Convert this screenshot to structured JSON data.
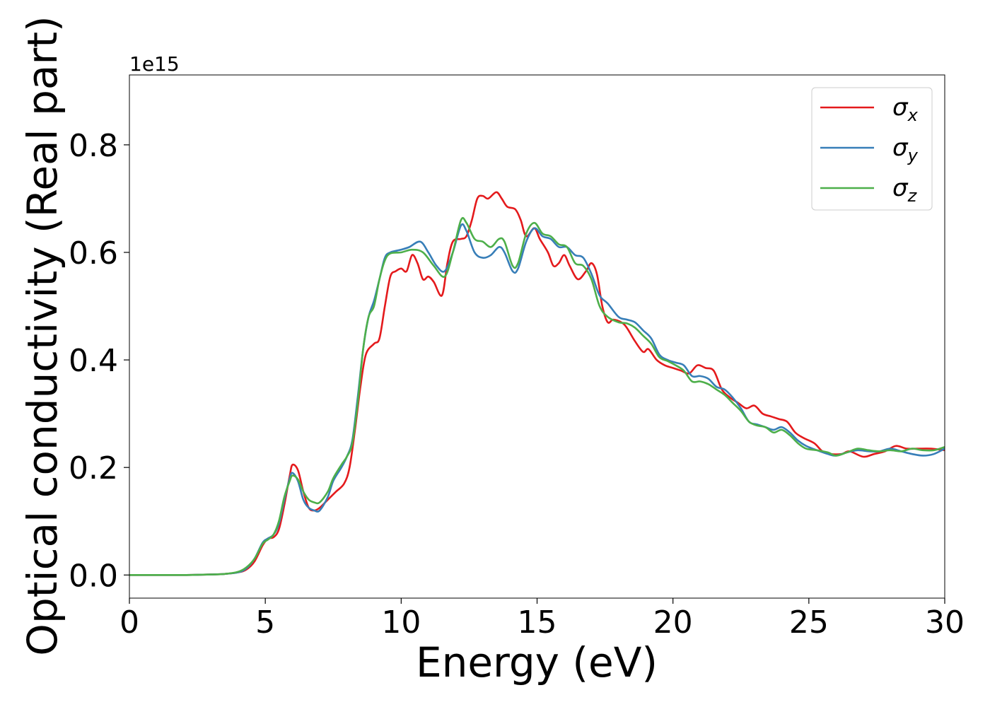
{
  "chart_data": {
    "type": "line",
    "title": "",
    "xlabel": "Energy (eV)",
    "ylabel": "Optical conductivity (Real part)",
    "offset_label": "1e15",
    "y_multiplier": 1000000000000000.0,
    "xlim": [
      0,
      30
    ],
    "ylim": [
      -0.043,
      0.93
    ],
    "xticks": [
      0,
      5,
      10,
      15,
      20,
      25,
      30
    ],
    "xtick_labels": [
      "0",
      "5",
      "10",
      "15",
      "20",
      "25",
      "30"
    ],
    "yticks": [
      0.0,
      0.2,
      0.4,
      0.6,
      0.8
    ],
    "ytick_labels": [
      "0.0",
      "0.2",
      "0.4",
      "0.6",
      "0.8"
    ],
    "grid": false,
    "legend_position": "top-right",
    "series": [
      {
        "name": "σx",
        "symbol": "σ",
        "subscript": "x",
        "color": "#e41a1c",
        "points": [
          [
            0,
            0.0
          ],
          [
            1,
            0.0
          ],
          [
            2,
            0.0
          ],
          [
            3,
            0.001
          ],
          [
            3.5,
            0.002
          ],
          [
            4,
            0.005
          ],
          [
            4.3,
            0.01
          ],
          [
            4.6,
            0.025
          ],
          [
            4.9,
            0.055
          ],
          [
            5.1,
            0.068
          ],
          [
            5.3,
            0.07
          ],
          [
            5.5,
            0.085
          ],
          [
            5.7,
            0.13
          ],
          [
            5.9,
            0.185
          ],
          [
            6.0,
            0.205
          ],
          [
            6.2,
            0.195
          ],
          [
            6.4,
            0.155
          ],
          [
            6.6,
            0.125
          ],
          [
            6.8,
            0.12
          ],
          [
            7.0,
            0.125
          ],
          [
            7.3,
            0.14
          ],
          [
            7.6,
            0.155
          ],
          [
            7.9,
            0.17
          ],
          [
            8.1,
            0.2
          ],
          [
            8.3,
            0.27
          ],
          [
            8.5,
            0.35
          ],
          [
            8.7,
            0.41
          ],
          [
            9.0,
            0.43
          ],
          [
            9.2,
            0.44
          ],
          [
            9.4,
            0.5
          ],
          [
            9.6,
            0.555
          ],
          [
            9.8,
            0.565
          ],
          [
            10.0,
            0.57
          ],
          [
            10.2,
            0.565
          ],
          [
            10.4,
            0.595
          ],
          [
            10.6,
            0.58
          ],
          [
            10.8,
            0.55
          ],
          [
            11.0,
            0.555
          ],
          [
            11.2,
            0.545
          ],
          [
            11.5,
            0.52
          ],
          [
            11.7,
            0.58
          ],
          [
            11.9,
            0.62
          ],
          [
            12.2,
            0.625
          ],
          [
            12.4,
            0.63
          ],
          [
            12.6,
            0.66
          ],
          [
            12.8,
            0.7
          ],
          [
            13.0,
            0.705
          ],
          [
            13.2,
            0.7
          ],
          [
            13.5,
            0.712
          ],
          [
            13.7,
            0.7
          ],
          [
            13.9,
            0.685
          ],
          [
            14.2,
            0.68
          ],
          [
            14.4,
            0.66
          ],
          [
            14.6,
            0.63
          ],
          [
            14.9,
            0.645
          ],
          [
            15.1,
            0.625
          ],
          [
            15.4,
            0.6
          ],
          [
            15.6,
            0.575
          ],
          [
            15.8,
            0.58
          ],
          [
            16.0,
            0.595
          ],
          [
            16.2,
            0.575
          ],
          [
            16.5,
            0.55
          ],
          [
            16.8,
            0.565
          ],
          [
            17.0,
            0.58
          ],
          [
            17.2,
            0.56
          ],
          [
            17.4,
            0.5
          ],
          [
            17.6,
            0.47
          ],
          [
            17.8,
            0.475
          ],
          [
            18.1,
            0.47
          ],
          [
            18.3,
            0.46
          ],
          [
            18.6,
            0.435
          ],
          [
            18.9,
            0.415
          ],
          [
            19.1,
            0.42
          ],
          [
            19.4,
            0.4
          ],
          [
            19.7,
            0.39
          ],
          [
            20.0,
            0.385
          ],
          [
            20.3,
            0.38
          ],
          [
            20.6,
            0.375
          ],
          [
            20.9,
            0.39
          ],
          [
            21.2,
            0.385
          ],
          [
            21.5,
            0.38
          ],
          [
            21.8,
            0.345
          ],
          [
            22.1,
            0.33
          ],
          [
            22.4,
            0.32
          ],
          [
            22.7,
            0.31
          ],
          [
            23.0,
            0.315
          ],
          [
            23.3,
            0.3
          ],
          [
            23.6,
            0.295
          ],
          [
            23.9,
            0.29
          ],
          [
            24.2,
            0.285
          ],
          [
            24.5,
            0.265
          ],
          [
            24.8,
            0.255
          ],
          [
            25.2,
            0.245
          ],
          [
            25.5,
            0.23
          ],
          [
            25.8,
            0.225
          ],
          [
            26.2,
            0.225
          ],
          [
            26.5,
            0.23
          ],
          [
            27.0,
            0.22
          ],
          [
            27.4,
            0.225
          ],
          [
            27.8,
            0.23
          ],
          [
            28.2,
            0.24
          ],
          [
            28.6,
            0.235
          ],
          [
            29.0,
            0.235
          ],
          [
            29.5,
            0.235
          ],
          [
            30.0,
            0.232
          ]
        ]
      },
      {
        "name": "σy",
        "symbol": "σ",
        "subscript": "y",
        "color": "#377eb8",
        "points": [
          [
            0,
            0.0
          ],
          [
            1,
            0.0
          ],
          [
            2,
            0.0
          ],
          [
            3,
            0.001
          ],
          [
            3.5,
            0.002
          ],
          [
            4,
            0.005
          ],
          [
            4.3,
            0.012
          ],
          [
            4.6,
            0.03
          ],
          [
            4.9,
            0.06
          ],
          [
            5.1,
            0.068
          ],
          [
            5.3,
            0.075
          ],
          [
            5.5,
            0.095
          ],
          [
            5.7,
            0.14
          ],
          [
            5.9,
            0.18
          ],
          [
            6.0,
            0.19
          ],
          [
            6.2,
            0.175
          ],
          [
            6.4,
            0.14
          ],
          [
            6.6,
            0.125
          ],
          [
            6.8,
            0.12
          ],
          [
            7.0,
            0.12
          ],
          [
            7.3,
            0.145
          ],
          [
            7.5,
            0.175
          ],
          [
            7.8,
            0.2
          ],
          [
            8.0,
            0.22
          ],
          [
            8.2,
            0.25
          ],
          [
            8.4,
            0.33
          ],
          [
            8.6,
            0.42
          ],
          [
            8.8,
            0.48
          ],
          [
            9.0,
            0.51
          ],
          [
            9.2,
            0.55
          ],
          [
            9.4,
            0.59
          ],
          [
            9.6,
            0.6
          ],
          [
            10.0,
            0.605
          ],
          [
            10.3,
            0.61
          ],
          [
            10.7,
            0.62
          ],
          [
            11.0,
            0.6
          ],
          [
            11.3,
            0.575
          ],
          [
            11.6,
            0.565
          ],
          [
            11.9,
            0.6
          ],
          [
            12.2,
            0.65
          ],
          [
            12.4,
            0.64
          ],
          [
            12.7,
            0.6
          ],
          [
            13.0,
            0.59
          ],
          [
            13.3,
            0.595
          ],
          [
            13.6,
            0.61
          ],
          [
            13.8,
            0.6
          ],
          [
            14.1,
            0.565
          ],
          [
            14.3,
            0.57
          ],
          [
            14.6,
            0.62
          ],
          [
            14.9,
            0.645
          ],
          [
            15.2,
            0.63
          ],
          [
            15.5,
            0.625
          ],
          [
            15.8,
            0.61
          ],
          [
            16.1,
            0.61
          ],
          [
            16.4,
            0.595
          ],
          [
            16.7,
            0.59
          ],
          [
            17.0,
            0.56
          ],
          [
            17.3,
            0.52
          ],
          [
            17.6,
            0.505
          ],
          [
            18.0,
            0.48
          ],
          [
            18.3,
            0.475
          ],
          [
            18.6,
            0.47
          ],
          [
            18.9,
            0.455
          ],
          [
            19.2,
            0.44
          ],
          [
            19.5,
            0.41
          ],
          [
            19.8,
            0.4
          ],
          [
            20.1,
            0.395
          ],
          [
            20.4,
            0.39
          ],
          [
            20.7,
            0.37
          ],
          [
            21.0,
            0.37
          ],
          [
            21.3,
            0.365
          ],
          [
            21.6,
            0.35
          ],
          [
            21.9,
            0.345
          ],
          [
            22.2,
            0.33
          ],
          [
            22.5,
            0.31
          ],
          [
            22.8,
            0.285
          ],
          [
            23.1,
            0.28
          ],
          [
            23.4,
            0.275
          ],
          [
            23.7,
            0.27
          ],
          [
            24.0,
            0.275
          ],
          [
            24.3,
            0.265
          ],
          [
            24.6,
            0.25
          ],
          [
            24.9,
            0.24
          ],
          [
            25.3,
            0.232
          ],
          [
            25.7,
            0.225
          ],
          [
            26.0,
            0.222
          ],
          [
            26.4,
            0.228
          ],
          [
            26.8,
            0.232
          ],
          [
            27.2,
            0.23
          ],
          [
            27.6,
            0.23
          ],
          [
            28.0,
            0.235
          ],
          [
            28.4,
            0.23
          ],
          [
            28.8,
            0.225
          ],
          [
            29.2,
            0.222
          ],
          [
            29.6,
            0.225
          ],
          [
            30.0,
            0.235
          ]
        ]
      },
      {
        "name": "σz",
        "symbol": "σ",
        "subscript": "z",
        "color": "#4daf4a",
        "points": [
          [
            0,
            0.0
          ],
          [
            1,
            0.0
          ],
          [
            2,
            0.0
          ],
          [
            3,
            0.001
          ],
          [
            3.5,
            0.002
          ],
          [
            4,
            0.006
          ],
          [
            4.3,
            0.014
          ],
          [
            4.6,
            0.03
          ],
          [
            4.9,
            0.058
          ],
          [
            5.1,
            0.066
          ],
          [
            5.3,
            0.075
          ],
          [
            5.5,
            0.1
          ],
          [
            5.7,
            0.145
          ],
          [
            5.9,
            0.175
          ],
          [
            6.0,
            0.185
          ],
          [
            6.2,
            0.178
          ],
          [
            6.4,
            0.155
          ],
          [
            6.6,
            0.14
          ],
          [
            6.8,
            0.135
          ],
          [
            7.0,
            0.135
          ],
          [
            7.3,
            0.155
          ],
          [
            7.5,
            0.18
          ],
          [
            7.8,
            0.205
          ],
          [
            8.0,
            0.22
          ],
          [
            8.2,
            0.245
          ],
          [
            8.4,
            0.32
          ],
          [
            8.6,
            0.42
          ],
          [
            8.8,
            0.48
          ],
          [
            9.0,
            0.5
          ],
          [
            9.2,
            0.55
          ],
          [
            9.4,
            0.585
          ],
          [
            9.6,
            0.598
          ],
          [
            10.0,
            0.6
          ],
          [
            10.4,
            0.605
          ],
          [
            10.8,
            0.6
          ],
          [
            11.2,
            0.575
          ],
          [
            11.6,
            0.555
          ],
          [
            11.9,
            0.6
          ],
          [
            12.2,
            0.66
          ],
          [
            12.4,
            0.655
          ],
          [
            12.7,
            0.625
          ],
          [
            13.0,
            0.62
          ],
          [
            13.3,
            0.61
          ],
          [
            13.6,
            0.625
          ],
          [
            13.8,
            0.62
          ],
          [
            14.1,
            0.575
          ],
          [
            14.3,
            0.58
          ],
          [
            14.6,
            0.635
          ],
          [
            14.9,
            0.655
          ],
          [
            15.2,
            0.635
          ],
          [
            15.5,
            0.63
          ],
          [
            15.8,
            0.615
          ],
          [
            16.1,
            0.61
          ],
          [
            16.4,
            0.58
          ],
          [
            16.7,
            0.575
          ],
          [
            17.0,
            0.55
          ],
          [
            17.3,
            0.5
          ],
          [
            17.6,
            0.48
          ],
          [
            18.0,
            0.47
          ],
          [
            18.3,
            0.468
          ],
          [
            18.6,
            0.46
          ],
          [
            18.9,
            0.445
          ],
          [
            19.2,
            0.43
          ],
          [
            19.5,
            0.405
          ],
          [
            19.8,
            0.398
          ],
          [
            20.1,
            0.39
          ],
          [
            20.4,
            0.38
          ],
          [
            20.7,
            0.36
          ],
          [
            21.0,
            0.36
          ],
          [
            21.3,
            0.355
          ],
          [
            21.6,
            0.345
          ],
          [
            21.9,
            0.335
          ],
          [
            22.2,
            0.32
          ],
          [
            22.5,
            0.305
          ],
          [
            22.8,
            0.285
          ],
          [
            23.1,
            0.278
          ],
          [
            23.4,
            0.275
          ],
          [
            23.7,
            0.265
          ],
          [
            24.0,
            0.27
          ],
          [
            24.3,
            0.26
          ],
          [
            24.6,
            0.245
          ],
          [
            24.9,
            0.235
          ],
          [
            25.3,
            0.232
          ],
          [
            25.7,
            0.228
          ],
          [
            26.0,
            0.222
          ],
          [
            26.4,
            0.228
          ],
          [
            26.8,
            0.235
          ],
          [
            27.2,
            0.232
          ],
          [
            27.6,
            0.23
          ],
          [
            28.0,
            0.232
          ],
          [
            28.4,
            0.23
          ],
          [
            28.8,
            0.235
          ],
          [
            29.2,
            0.232
          ],
          [
            29.6,
            0.232
          ],
          [
            30.0,
            0.238
          ]
        ]
      }
    ]
  }
}
